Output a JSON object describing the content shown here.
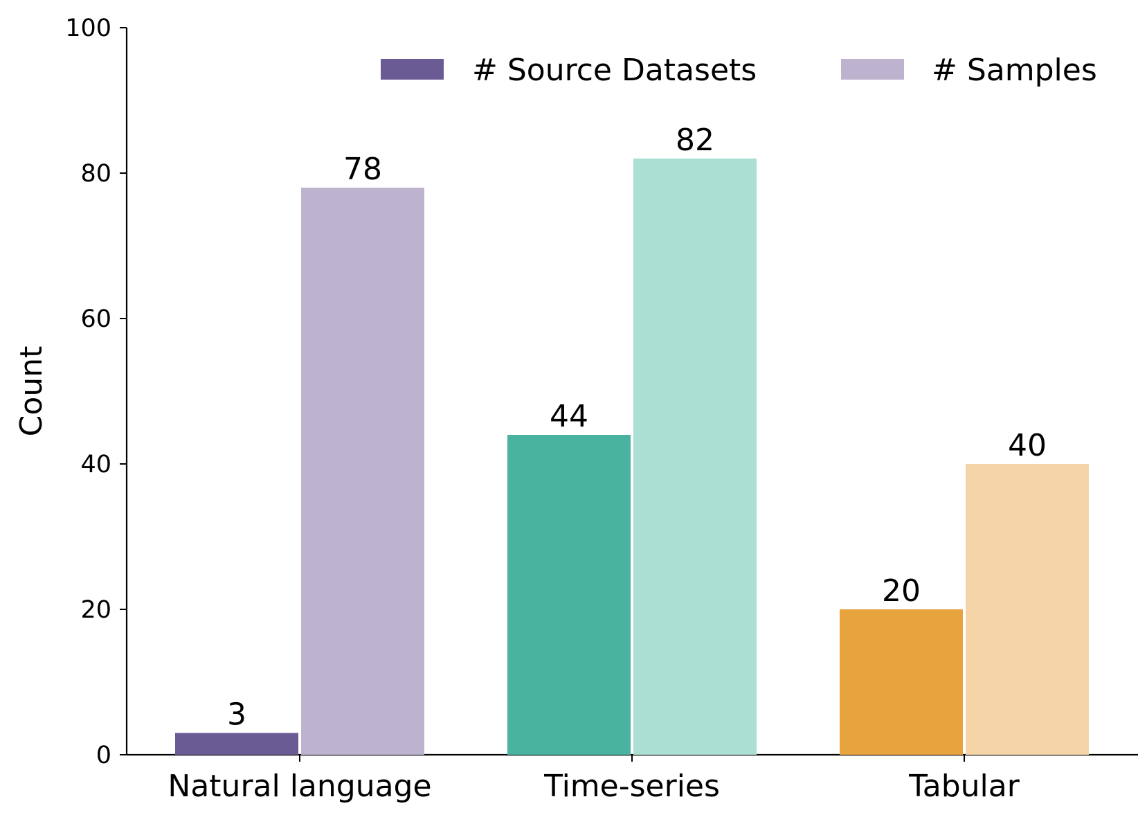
{
  "chart_data": {
    "type": "bar",
    "categories": [
      "Natural language",
      "Time-series",
      "Tabular"
    ],
    "series": [
      {
        "name": "# Source Datasets",
        "values": [
          3,
          44,
          20
        ],
        "colors": [
          "#6b5b95",
          "#4ab3a0",
          "#e7a33e"
        ]
      },
      {
        "name": "# Samples",
        "values": [
          78,
          82,
          40
        ],
        "colors": [
          "#bdb3cf",
          "#acdfd3",
          "#f5d5a8"
        ]
      }
    ],
    "ylabel": "Count",
    "ylim": [
      0,
      100
    ],
    "yticks": [
      0,
      20,
      40,
      60,
      80,
      100
    ],
    "legend_position": "top-right",
    "grid": false,
    "data_labels": true
  }
}
